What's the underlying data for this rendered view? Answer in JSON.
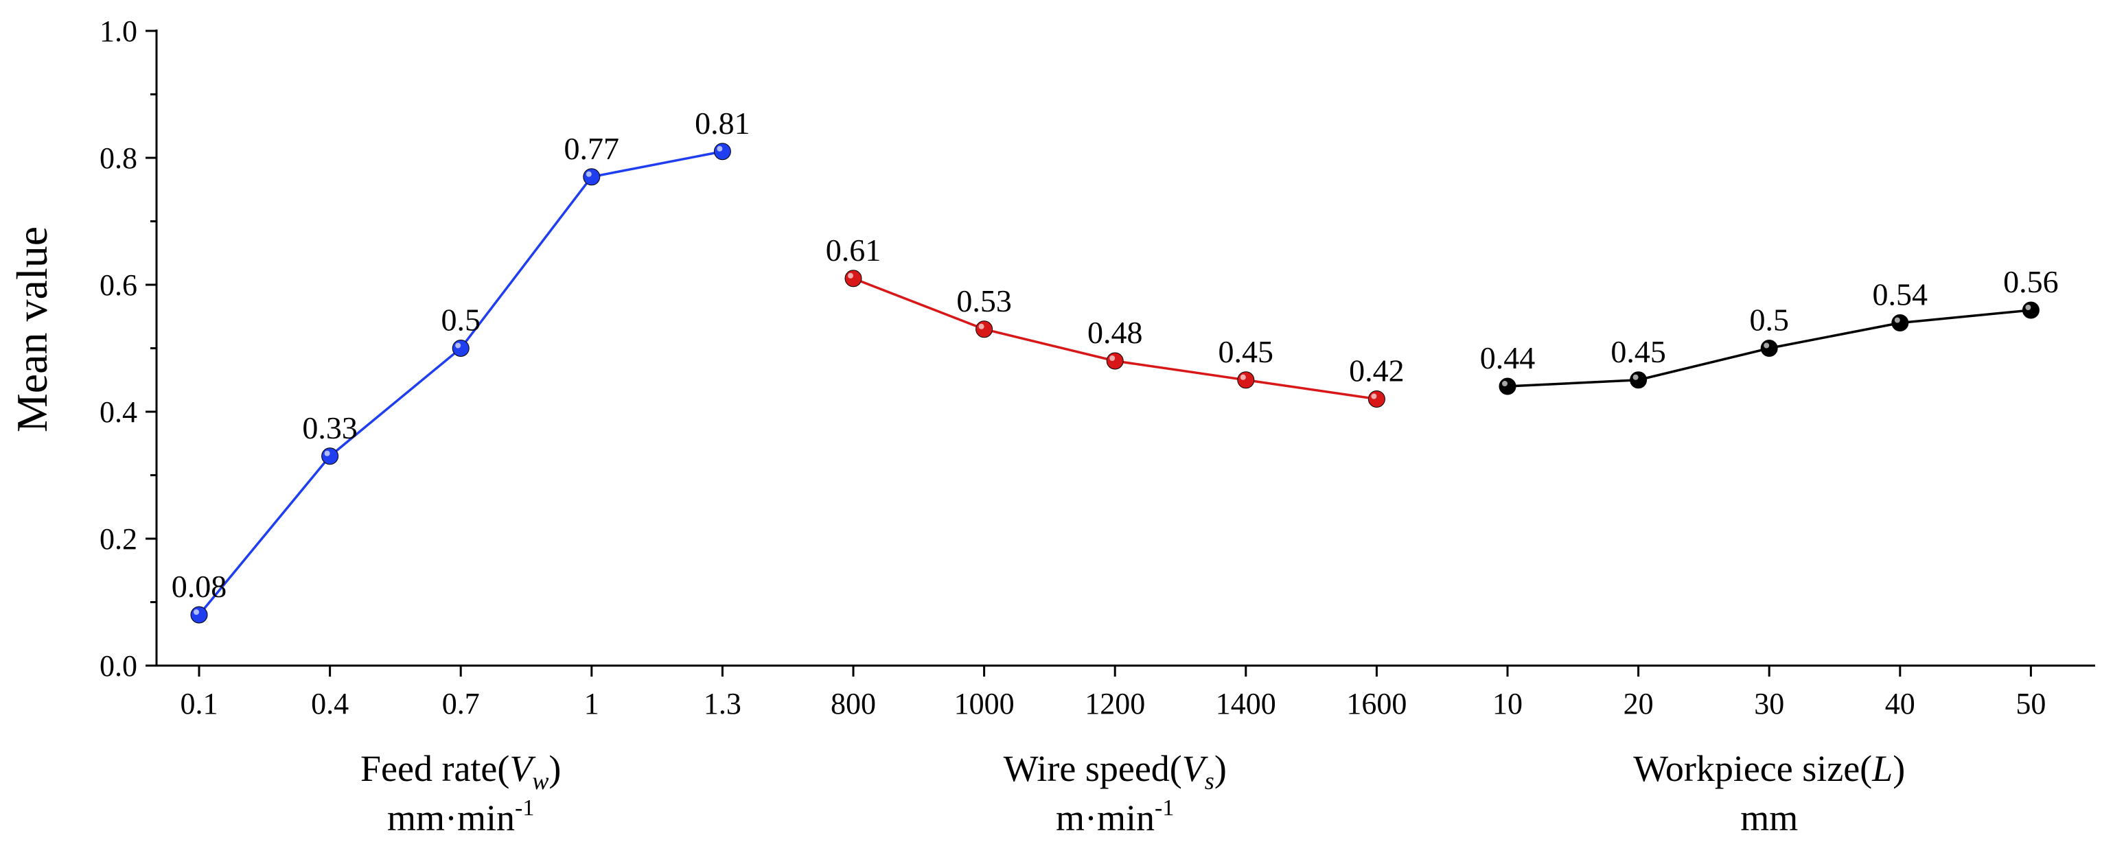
{
  "chart_data": {
    "type": "line",
    "ylabel": "Mean value",
    "ylim": [
      0,
      1.0
    ],
    "yticks": [
      "0.0",
      "0.2",
      "0.4",
      "0.6",
      "0.8",
      "1.0"
    ],
    "groups": [
      {
        "name": "Feed rate",
        "title": "Feed rate(",
        "symbol": "V",
        "subscript": "w",
        "title_end": ")",
        "unit": "mm·min",
        "unit_sup": "-1",
        "color": "#1f3ef0",
        "categories": [
          "0.1",
          "0.4",
          "0.7",
          "1",
          "1.3"
        ],
        "values": [
          0.08,
          0.33,
          0.5,
          0.77,
          0.81
        ],
        "labels": [
          "0.08",
          "0.33",
          "0.5",
          "0.77",
          "0.81"
        ]
      },
      {
        "name": "Wire speed",
        "title": "Wire speed(",
        "symbol": "V",
        "subscript": "s",
        "title_end": ")",
        "unit": "m·min",
        "unit_sup": "-1",
        "color": "#d81818",
        "categories": [
          "800",
          "1000",
          "1200",
          "1400",
          "1600"
        ],
        "values": [
          0.61,
          0.53,
          0.48,
          0.45,
          0.42
        ],
        "labels": [
          "0.61",
          "0.53",
          "0.48",
          "0.45",
          "0.42"
        ]
      },
      {
        "name": "Workpiece size",
        "title": "Workpiece size(",
        "symbol": "L",
        "subscript": "",
        "title_end": ")",
        "unit": "mm",
        "unit_sup": "",
        "color": "#000000",
        "categories": [
          "10",
          "20",
          "30",
          "40",
          "50"
        ],
        "values": [
          0.44,
          0.45,
          0.5,
          0.54,
          0.56
        ],
        "labels": [
          "0.44",
          "0.45",
          "0.5",
          "0.54",
          "0.56"
        ]
      }
    ]
  }
}
